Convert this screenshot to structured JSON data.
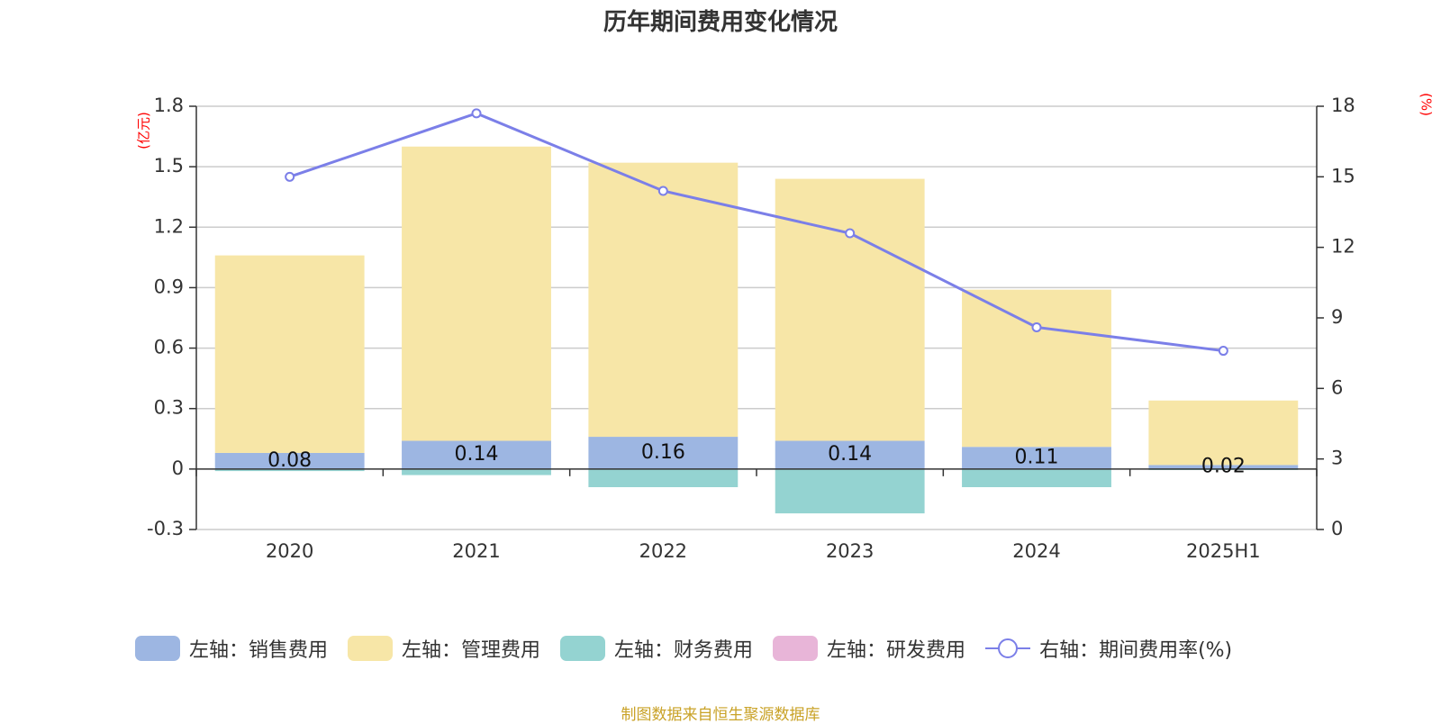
{
  "title": "历年期间费用变化情况",
  "left_unit": "(亿元)",
  "right_unit": "(%)",
  "source": "制图数据来自恒生聚源数据库",
  "colors": {
    "sales": "#9db6e2",
    "admin": "#f7e6a7",
    "finance": "#94d3d1",
    "rd": "#e8b5d8",
    "rate": "#7b7fe8"
  },
  "legend": [
    {
      "label": "左轴：销售费用",
      "key": "sales"
    },
    {
      "label": "左轴：管理费用",
      "key": "admin"
    },
    {
      "label": "左轴：财务费用",
      "key": "finance"
    },
    {
      "label": "左轴：研发费用",
      "key": "rd"
    },
    {
      "label": "右轴：期间费用率(%)",
      "key": "rate"
    }
  ],
  "chart_data": {
    "type": "bar",
    "stacked": true,
    "categories": [
      "2020",
      "2021",
      "2022",
      "2023",
      "2024",
      "2025H1"
    ],
    "series": [
      {
        "name": "左轴：销售费用",
        "key": "sales",
        "axis": "left",
        "values": [
          0.08,
          0.14,
          0.16,
          0.14,
          0.11,
          0.02
        ]
      },
      {
        "name": "左轴：管理费用",
        "key": "admin",
        "axis": "left",
        "values": [
          0.98,
          1.46,
          1.36,
          1.3,
          0.78,
          0.32
        ]
      },
      {
        "name": "左轴：财务费用",
        "key": "finance",
        "axis": "left",
        "values": [
          -0.01,
          -0.03,
          -0.09,
          -0.22,
          -0.09,
          -0.005
        ]
      },
      {
        "name": "左轴：研发费用",
        "key": "rd",
        "axis": "left",
        "values": [
          0,
          0,
          0,
          0,
          0,
          0
        ]
      },
      {
        "name": "右轴：期间费用率(%)",
        "key": "rate",
        "axis": "right",
        "type": "line",
        "values": [
          15.0,
          17.7,
          14.4,
          12.6,
          8.6,
          7.6
        ]
      }
    ],
    "data_labels": [
      "0.08",
      "0.14",
      "0.16",
      "0.14",
      "0.11",
      "0.02"
    ],
    "left_axis": {
      "min": -0.3,
      "max": 1.8,
      "ticks": [
        "-0.3",
        "0",
        "0.3",
        "0.6",
        "0.9",
        "1.2",
        "1.5",
        "1.8"
      ]
    },
    "right_axis": {
      "min": 0,
      "max": 18,
      "ticks": [
        "0",
        "3",
        "6",
        "9",
        "12",
        "15",
        "18"
      ]
    },
    "legend_position": "bottom",
    "grid": true
  }
}
